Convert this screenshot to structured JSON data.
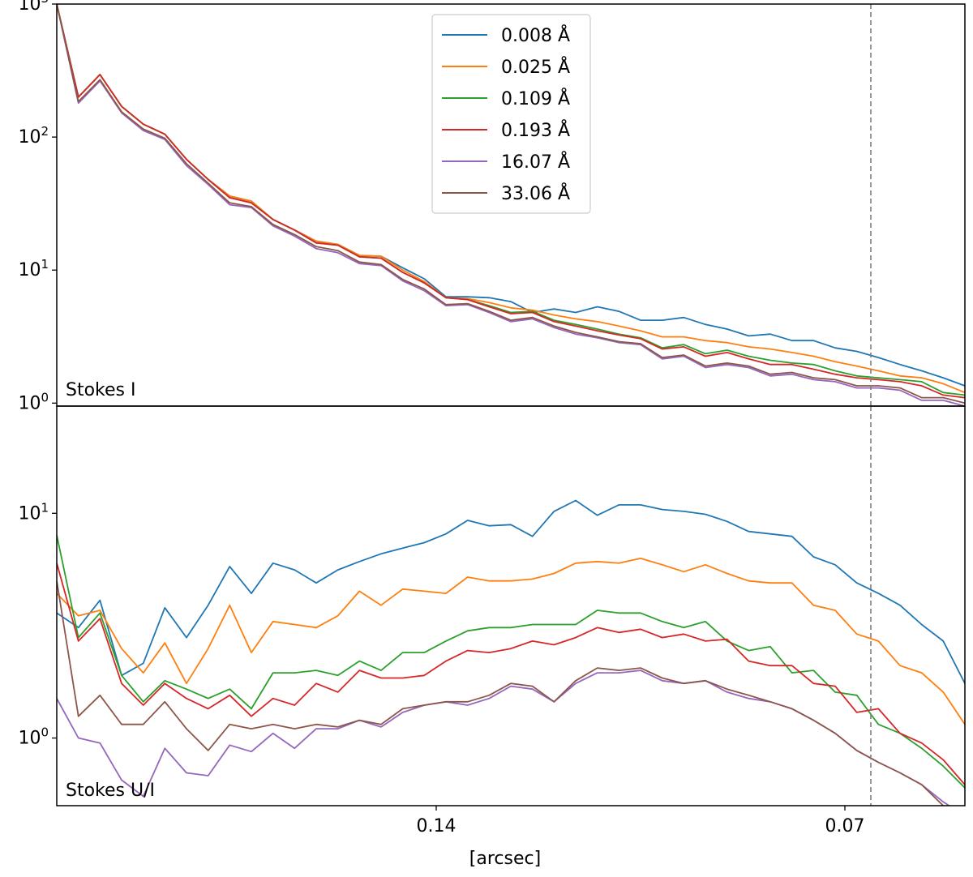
{
  "chart_data": [
    {
      "type": "line",
      "panel_label": "Stokes I",
      "yscale": "log",
      "ylim": [
        0.95,
        1000
      ],
      "yticks": [
        1,
        10,
        100,
        1000
      ],
      "ytick_labels": [
        {
          "base": "10",
          "exp": "0"
        },
        {
          "base": "10",
          "exp": "1"
        },
        {
          "base": "10",
          "exp": "2"
        },
        {
          "base": "10",
          "exp": "3"
        }
      ],
      "series": [
        {
          "name": "0.008 Å",
          "color": "#1f77b4",
          "values": [
            1000,
            200,
            295,
            170,
            125,
            105,
            68,
            48,
            36,
            33,
            24,
            20,
            16.5,
            15.6,
            12.9,
            12.7,
            10.4,
            8.6,
            6.3,
            6.3,
            6.2,
            5.8,
            4.8,
            5.1,
            4.8,
            5.3,
            4.9,
            4.2,
            4.2,
            4.4,
            3.9,
            3.6,
            3.2,
            3.3,
            2.95,
            2.95,
            2.6,
            2.45,
            2.2,
            1.95,
            1.75,
            1.55,
            1.35
          ]
        },
        {
          "name": "0.025 Å",
          "color": "#ff7f0e",
          "values": [
            1000,
            200,
            295,
            170,
            125,
            105,
            68,
            48,
            36,
            33,
            24,
            20,
            16.5,
            15.6,
            12.9,
            12.7,
            10,
            8.2,
            6.2,
            6.1,
            5.7,
            5.2,
            5,
            4.6,
            4.3,
            4.1,
            3.8,
            3.5,
            3.15,
            3.15,
            2.95,
            2.85,
            2.65,
            2.55,
            2.4,
            2.25,
            2.05,
            1.9,
            1.75,
            1.6,
            1.55,
            1.4,
            1.2
          ]
        },
        {
          "name": "0.109 Å",
          "color": "#2ca02c",
          "values": [
            1000,
            200,
            295,
            170,
            125,
            105,
            68,
            48,
            35,
            32,
            24,
            20,
            16,
            15.4,
            12.6,
            12.3,
            9.6,
            8,
            6.2,
            6,
            5.4,
            4.8,
            4.9,
            4.2,
            3.9,
            3.6,
            3.3,
            3.1,
            2.6,
            2.75,
            2.35,
            2.5,
            2.25,
            2.1,
            2,
            1.95,
            1.75,
            1.6,
            1.55,
            1.5,
            1.45,
            1.2,
            1.15
          ]
        },
        {
          "name": "0.193 Å",
          "color": "#d62728",
          "values": [
            1000,
            200,
            295,
            170,
            125,
            105,
            68,
            48,
            35,
            32,
            24,
            20,
            16,
            15.4,
            12.6,
            12.3,
            9.6,
            8,
            6.2,
            6,
            5.3,
            4.7,
            4.8,
            4.1,
            3.8,
            3.5,
            3.25,
            3.05,
            2.55,
            2.65,
            2.25,
            2.4,
            2.15,
            1.95,
            1.95,
            1.8,
            1.65,
            1.55,
            1.5,
            1.45,
            1.35,
            1.15,
            1.1
          ]
        },
        {
          "name": "16.07 Å",
          "color": "#9467bd",
          "values": [
            1000,
            180,
            265,
            152,
            112,
            96,
            61,
            44,
            31,
            29.5,
            21.5,
            18,
            14.5,
            13.5,
            11.2,
            10.8,
            8.3,
            7,
            5.4,
            5.5,
            4.8,
            4.1,
            4.3,
            3.7,
            3.3,
            3.1,
            2.85,
            2.75,
            2.15,
            2.25,
            1.85,
            1.95,
            1.85,
            1.6,
            1.65,
            1.5,
            1.45,
            1.3,
            1.3,
            1.25,
            1.05,
            1.05,
            0.95
          ]
        },
        {
          "name": "33.06 Å",
          "color": "#8c564b",
          "values": [
            1000,
            185,
            270,
            155,
            115,
            98,
            63,
            45,
            32,
            30,
            22,
            18.5,
            15,
            14,
            11.5,
            11,
            8.5,
            7.2,
            5.5,
            5.6,
            4.9,
            4.2,
            4.4,
            3.8,
            3.4,
            3.15,
            2.9,
            2.8,
            2.2,
            2.3,
            1.9,
            2,
            1.9,
            1.65,
            1.7,
            1.55,
            1.5,
            1.35,
            1.35,
            1.3,
            1.1,
            1.1,
            1
          ]
        }
      ]
    },
    {
      "type": "line",
      "panel_label": "Stokes U/I",
      "yscale": "log",
      "ylim": [
        0.5,
        30
      ],
      "yticks": [
        1,
        10
      ],
      "ytick_labels": [
        {
          "base": "10",
          "exp": "0"
        },
        {
          "base": "10",
          "exp": "1"
        }
      ],
      "xlabel": "[arcsec]",
      "xtick_labels": [
        "0.14",
        "0.07"
      ],
      "vline_label": "",
      "series": [
        {
          "name": "0.008 Å",
          "color": "#1f77b4",
          "values": [
            3.6,
            3.1,
            4.1,
            1.9,
            2.15,
            3.8,
            2.8,
            3.9,
            5.8,
            4.4,
            6,
            5.6,
            4.9,
            5.6,
            6.1,
            6.6,
            7,
            7.4,
            8.1,
            9.3,
            8.8,
            8.9,
            7.9,
            10.2,
            11.4,
            9.8,
            10.9,
            10.9,
            10.4,
            10.2,
            9.9,
            9.2,
            8.3,
            8.1,
            7.9,
            6.4,
            5.9,
            4.9,
            4.4,
            3.9,
            3.2,
            2.7,
            1.75
          ]
        },
        {
          "name": "0.025 Å",
          "color": "#ff7f0e",
          "values": [
            4.4,
            3.5,
            3.7,
            2.5,
            1.95,
            2.65,
            1.75,
            2.5,
            3.9,
            2.4,
            3.3,
            3.2,
            3.1,
            3.5,
            4.5,
            3.9,
            4.6,
            4.5,
            4.4,
            5.2,
            5,
            5,
            5.1,
            5.4,
            6,
            6.1,
            6,
            6.3,
            5.9,
            5.5,
            5.9,
            5.4,
            5,
            4.9,
            4.9,
            3.9,
            3.7,
            2.9,
            2.7,
            2.1,
            1.95,
            1.6,
            1.15
          ]
        },
        {
          "name": "0.109 Å",
          "color": "#2ca02c",
          "values": [
            8,
            2.8,
            3.6,
            1.9,
            1.45,
            1.8,
            1.65,
            1.5,
            1.65,
            1.35,
            1.95,
            1.95,
            2,
            1.9,
            2.2,
            2,
            2.4,
            2.4,
            2.7,
            3,
            3.1,
            3.1,
            3.2,
            3.2,
            3.2,
            3.7,
            3.6,
            3.6,
            3.3,
            3.1,
            3.3,
            2.7,
            2.45,
            2.55,
            1.95,
            2,
            1.6,
            1.55,
            1.15,
            1.05,
            0.9,
            0.75,
            0.6
          ]
        },
        {
          "name": "0.193 Å",
          "color": "#d62728",
          "values": [
            6,
            2.7,
            3.4,
            1.75,
            1.4,
            1.75,
            1.5,
            1.35,
            1.55,
            1.25,
            1.5,
            1.4,
            1.75,
            1.6,
            2,
            1.85,
            1.85,
            1.9,
            2.2,
            2.45,
            2.4,
            2.5,
            2.7,
            2.6,
            2.8,
            3.1,
            2.95,
            3.05,
            2.8,
            2.9,
            2.7,
            2.75,
            2.2,
            2.1,
            2.1,
            1.75,
            1.7,
            1.3,
            1.35,
            1.05,
            0.95,
            0.8,
            0.62
          ]
        },
        {
          "name": "16.07 Å",
          "color": "#9467bd",
          "values": [
            1.5,
            1,
            0.95,
            0.65,
            0.55,
            0.9,
            0.7,
            0.68,
            0.93,
            0.87,
            1.05,
            0.9,
            1.1,
            1.1,
            1.2,
            1.12,
            1.3,
            1.4,
            1.45,
            1.4,
            1.5,
            1.7,
            1.65,
            1.45,
            1.75,
            1.95,
            1.95,
            2,
            1.8,
            1.75,
            1.8,
            1.6,
            1.5,
            1.45,
            1.35,
            1.2,
            1.05,
            0.88,
            0.78,
            0.7,
            0.62,
            0.52,
            0.45
          ]
        },
        {
          "name": "33.06 Å",
          "color": "#8c564b",
          "values": [
            5,
            1.25,
            1.55,
            1.15,
            1.15,
            1.45,
            1.1,
            0.88,
            1.15,
            1.1,
            1.15,
            1.1,
            1.15,
            1.12,
            1.2,
            1.15,
            1.35,
            1.4,
            1.45,
            1.45,
            1.55,
            1.75,
            1.7,
            1.45,
            1.8,
            2.05,
            2,
            2.05,
            1.85,
            1.75,
            1.8,
            1.65,
            1.55,
            1.45,
            1.35,
            1.2,
            1.05,
            0.88,
            0.78,
            0.7,
            0.62,
            0.5,
            0.45
          ]
        }
      ]
    }
  ]
}
